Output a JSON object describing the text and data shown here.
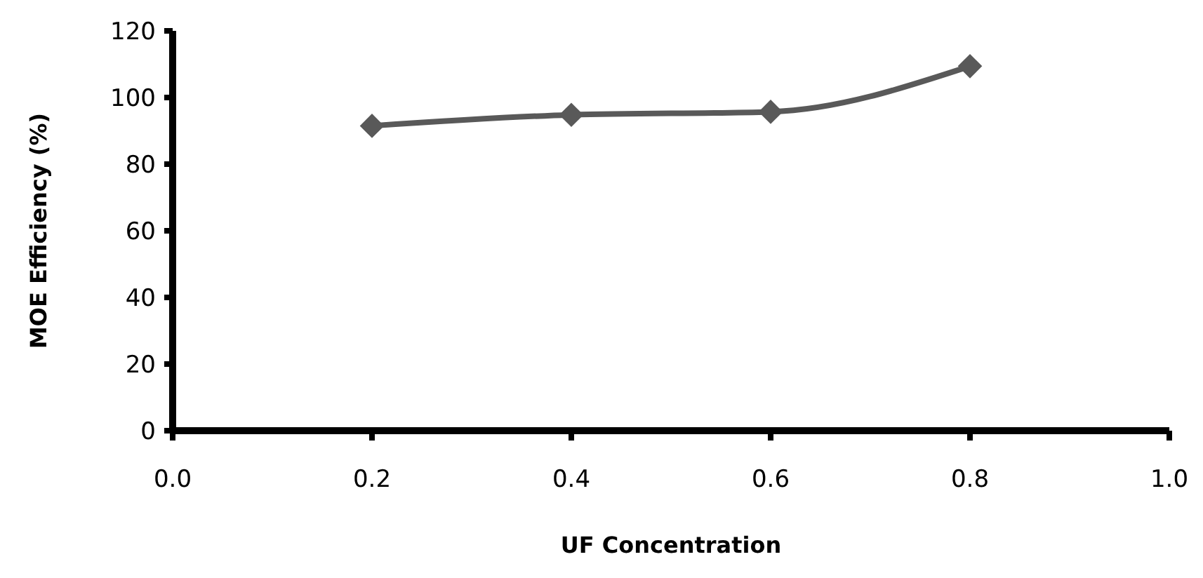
{
  "chart_data": {
    "type": "line",
    "xlabel": "UF Concentration",
    "ylabel": "MOE Efficiency (%)",
    "x": [
      0.2,
      0.4,
      0.6,
      0.8
    ],
    "series": [
      {
        "color": "#595959",
        "values": [
          91.5,
          94.8,
          95.7,
          109.4
        ]
      }
    ],
    "xlim": [
      0,
      1
    ],
    "xticks": [
      {
        "value": 0,
        "label": "0.0"
      },
      {
        "value": 0.2,
        "label": "0.2"
      },
      {
        "value": 0.4,
        "label": "0.4"
      },
      {
        "value": 0.6,
        "label": "0.6"
      },
      {
        "value": 0.8,
        "label": "0.8"
      },
      {
        "value": 1,
        "label": "1.0"
      }
    ],
    "ylim": [
      0,
      120
    ],
    "yticks": [
      0,
      20,
      40,
      60,
      80,
      100,
      120
    ],
    "marker": "diamond",
    "line_style": "solid",
    "grid": false
  }
}
